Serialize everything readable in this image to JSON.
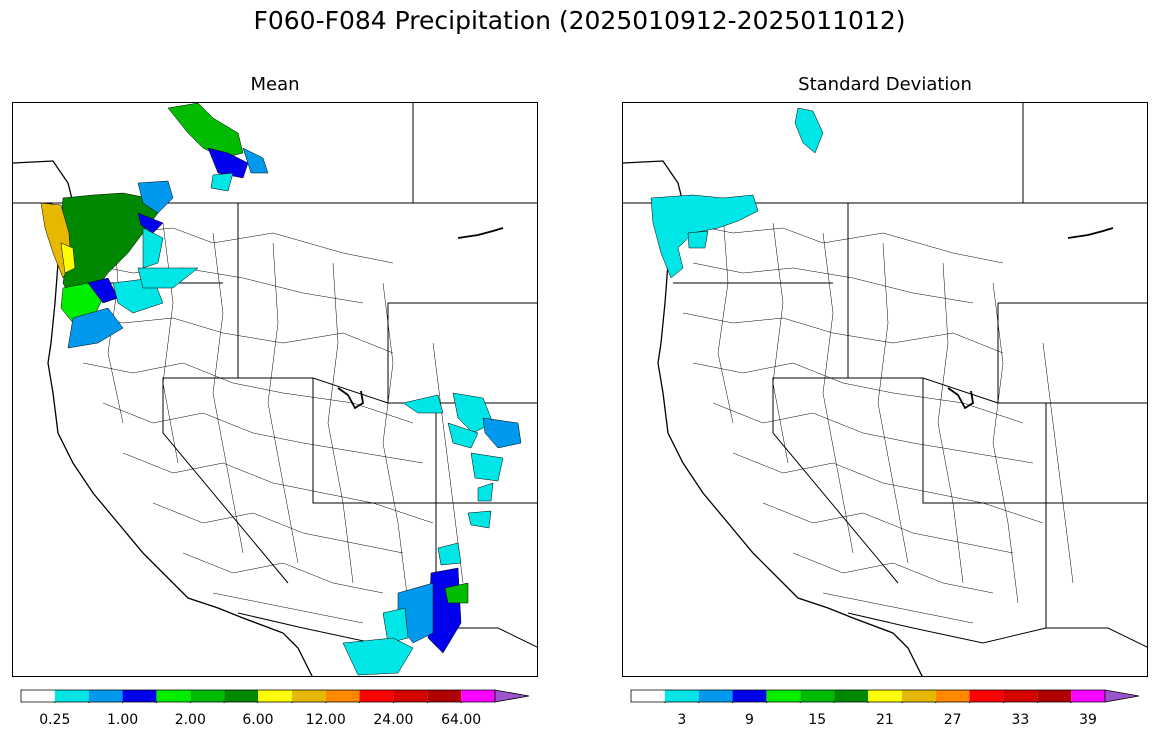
{
  "title": "F060-F084 Precipitation (2025010912-2025011012)",
  "panels": {
    "left": {
      "title": "Mean"
    },
    "right": {
      "title": "Standard Deviation"
    }
  },
  "colorbars": {
    "left": {
      "colors": [
        "#ffffff",
        "#00e5e5",
        "#0099ee",
        "#0000ee",
        "#00ee00",
        "#00bb00",
        "#008800",
        "#ffff00",
        "#e6b800",
        "#ff8800",
        "#ff0000",
        "#d40000",
        "#b00000",
        "#ff00ff",
        "#9955cc"
      ],
      "ticks": [
        "0.25",
        "1.00",
        "2.00",
        "6.00",
        "12.00",
        "24.00",
        "64.00"
      ],
      "extend": "max"
    },
    "right": {
      "colors": [
        "#ffffff",
        "#00e5e5",
        "#0099ee",
        "#0000ee",
        "#00ee00",
        "#00bb00",
        "#008800",
        "#ffff00",
        "#e6b800",
        "#ff8800",
        "#ff0000",
        "#d40000",
        "#b00000",
        "#ff00ff",
        "#9955cc"
      ],
      "ticks": [
        "3",
        "9",
        "15",
        "21",
        "27",
        "33",
        "39"
      ],
      "extend": "max"
    }
  }
}
